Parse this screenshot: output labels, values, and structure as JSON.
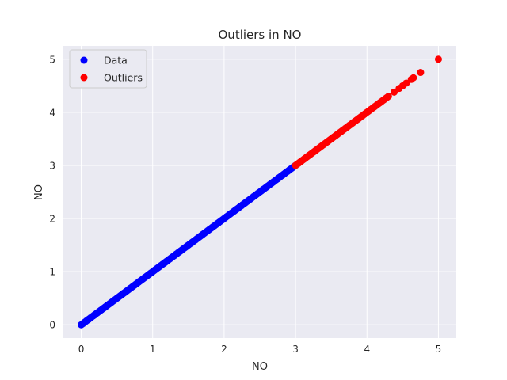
{
  "chart_data": {
    "type": "scatter",
    "title": "Outliers in NO",
    "xlabel": "NO",
    "ylabel": "NO",
    "xlim": [
      -0.25,
      5.25
    ],
    "ylim": [
      -0.25,
      5.25
    ],
    "x_ticks": [
      0,
      1,
      2,
      3,
      4,
      5
    ],
    "y_ticks": [
      0,
      1,
      2,
      3,
      4,
      5
    ],
    "grid": true,
    "legend_position": "top-left",
    "series": [
      {
        "name": "Data",
        "color": "#0000ff",
        "range": [
          0,
          3.0
        ],
        "step": 0.02,
        "extra_points": [
          0.1,
          0.18
        ]
      },
      {
        "name": "Outliers",
        "color": "#ff0000",
        "range": [
          3.0,
          4.3
        ],
        "step": 0.02,
        "extra_points": [
          4.38,
          4.45,
          4.5,
          4.55,
          4.62,
          4.65,
          4.75,
          5.0
        ]
      }
    ]
  }
}
